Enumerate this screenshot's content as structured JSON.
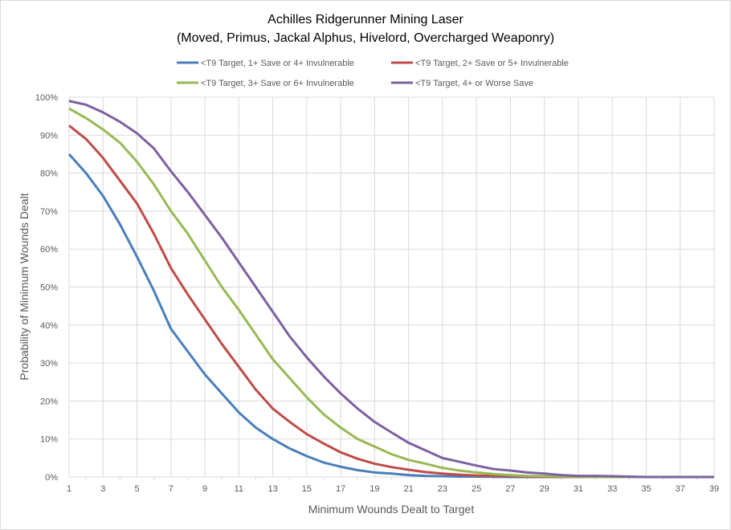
{
  "chart_data": {
    "type": "line",
    "title": "Achilles Ridgerunner Mining Laser",
    "subtitle": "(Moved, Primus, Jackal Alphus, Hivelord, Overcharged Weaponry)",
    "xlabel": "Minimum Wounds Dealt  to Target",
    "ylabel": "Probability of Minimum Wounds Dealt",
    "xlim": [
      1,
      39
    ],
    "ylim": [
      0,
      100
    ],
    "x_ticks": [
      "1",
      "3",
      "5",
      "7",
      "9",
      "11",
      "13",
      "15",
      "17",
      "19",
      "21",
      "23",
      "25",
      "27",
      "29",
      "31",
      "33",
      "35",
      "37",
      "39"
    ],
    "y_ticks": [
      "0%",
      "10%",
      "20%",
      "30%",
      "40%",
      "50%",
      "60%",
      "70%",
      "80%",
      "90%",
      "100%"
    ],
    "grid": true,
    "legend_position": "top",
    "x": [
      1,
      2,
      3,
      4,
      5,
      6,
      7,
      8,
      9,
      10,
      11,
      12,
      13,
      14,
      15,
      16,
      17,
      18,
      19,
      20,
      21,
      22,
      23,
      24,
      25,
      26,
      27,
      28,
      29,
      30,
      31,
      32,
      33,
      34,
      35,
      36,
      37,
      38,
      39
    ],
    "series": [
      {
        "name": "<T9 Target, 1+ Save or 4+ Invulnerable",
        "color": "#4a7ebb",
        "values": [
          85,
          80,
          74,
          66.5,
          58,
          49,
          39,
          33,
          27,
          22,
          17,
          13,
          10,
          7.5,
          5.5,
          3.8,
          2.7,
          1.8,
          1.2,
          0.9,
          0.5,
          0.3,
          0.2,
          0.1,
          0.1,
          0.05,
          0,
          0,
          0,
          0,
          0,
          0,
          0,
          0,
          0,
          0,
          0,
          0,
          0
        ]
      },
      {
        "name": "<T9 Target, 2+ Save or 5+ Invulnerable",
        "color": "#be4b48",
        "values": [
          92.5,
          89,
          84,
          78,
          72,
          64,
          55,
          48,
          41.5,
          35,
          29,
          23,
          18,
          14.5,
          11.3,
          8.8,
          6.5,
          4.8,
          3.5,
          2.6,
          1.9,
          1.3,
          0.9,
          0.6,
          0.4,
          0.3,
          0.2,
          0.1,
          0.05,
          0,
          0,
          0,
          0,
          0,
          0,
          0,
          0,
          0,
          0
        ]
      },
      {
        "name": "<T9 Target, 3+ Save or 6+ Invulnerable",
        "color": "#98b954",
        "values": [
          97,
          94.5,
          91.5,
          88,
          83,
          77,
          70,
          64,
          57,
          50,
          44,
          37.5,
          31,
          26,
          21,
          16.5,
          13,
          10,
          8,
          6,
          4.5,
          3.5,
          2.4,
          1.7,
          1.2,
          0.8,
          0.5,
          0.3,
          0.2,
          0.1,
          0.05,
          0,
          0,
          0,
          0,
          0,
          0,
          0,
          0
        ]
      },
      {
        "name": "<T9 Target, 4+ or Worse Save",
        "color": "#7d60a0",
        "values": [
          99,
          98,
          96,
          93.5,
          90.5,
          86.5,
          80.5,
          75,
          69,
          63,
          56.5,
          50,
          43.5,
          37,
          31.5,
          26.5,
          22,
          18,
          14.5,
          11.7,
          9,
          7,
          5,
          4,
          3,
          2.1,
          1.7,
          1.2,
          0.9,
          0.5,
          0.3,
          0.3,
          0.2,
          0.1,
          0,
          0,
          0,
          0,
          0
        ]
      }
    ]
  }
}
